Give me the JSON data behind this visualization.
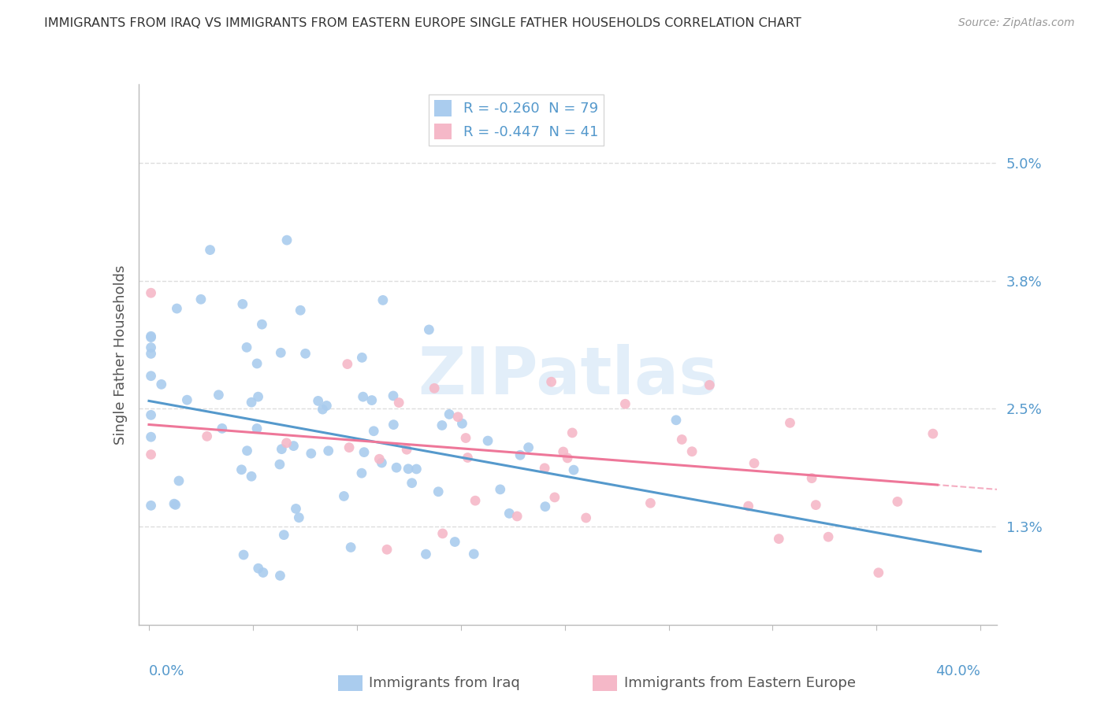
{
  "title": "IMMIGRANTS FROM IRAQ VS IMMIGRANTS FROM EASTERN EUROPE SINGLE FATHER HOUSEHOLDS CORRELATION CHART",
  "source": "Source: ZipAtlas.com",
  "ylabel": "Single Father Households",
  "ytick_vals": [
    0.013,
    0.025,
    0.038,
    0.05
  ],
  "ytick_labels": [
    "1.3%",
    "2.5%",
    "3.8%",
    "5.0%"
  ],
  "xtick_vals": [
    0.0,
    0.05,
    0.1,
    0.15,
    0.2,
    0.25,
    0.3,
    0.35,
    0.4
  ],
  "xlim": [
    -0.005,
    0.408
  ],
  "ylim": [
    0.003,
    0.058
  ],
  "legend_iraq": "R = -0.260  N = 79",
  "legend_eastern": "R = -0.447  N = 41",
  "color_iraq": "#aaccee",
  "color_eastern": "#f5b8c8",
  "color_iraq_line": "#5599cc",
  "color_eastern_line": "#ee7799",
  "color_grid": "#dddddd",
  "color_axis": "#bbbbbb",
  "color_tick_label": "#5599cc",
  "color_title": "#333333",
  "color_source": "#999999",
  "color_watermark": "#d0e4f5",
  "watermark_text": "ZIPatlas",
  "background_color": "#ffffff",
  "iraq_R": -0.26,
  "iraq_N": 79,
  "eastern_R": -0.447,
  "eastern_N": 41
}
